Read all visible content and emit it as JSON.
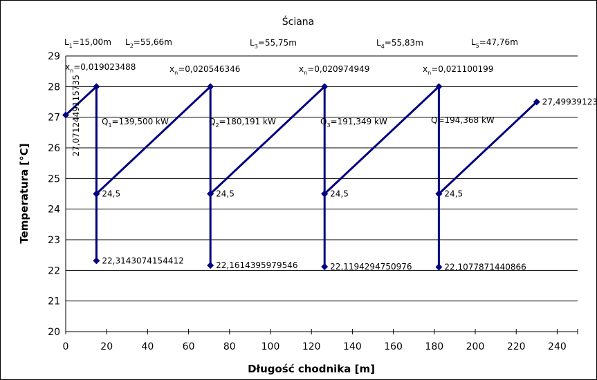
{
  "chart_data": {
    "type": "line",
    "title": "Ściana",
    "xlabel": "Długość chodnika [m]",
    "ylabel": "Temperatura [°C]",
    "xlim": [
      0,
      250
    ],
    "ylim": [
      20,
      29
    ],
    "xticks": [
      0,
      20,
      40,
      60,
      80,
      100,
      120,
      140,
      160,
      180,
      200,
      220,
      240
    ],
    "yticks": [
      20,
      21,
      22,
      23,
      24,
      25,
      26,
      27,
      28,
      29
    ],
    "grid": "horizontal",
    "color": "#000080",
    "series": [
      {
        "points": [
          [
            0,
            27.0712449115735
          ],
          [
            15.0,
            28.0
          ],
          [
            15.0,
            24.5
          ],
          [
            15.0,
            22.3143074154412
          ],
          [
            15.0,
            24.5
          ],
          [
            70.66,
            28.0
          ],
          [
            70.66,
            24.5
          ],
          [
            70.66,
            22.1614395979546
          ],
          [
            70.66,
            24.5
          ],
          [
            126.41,
            28.0
          ],
          [
            126.41,
            24.5
          ],
          [
            126.41,
            22.1194294750976
          ],
          [
            126.41,
            24.5
          ],
          [
            182.24,
            28.0
          ],
          [
            182.24,
            24.5
          ],
          [
            182.24,
            22.1077871440866
          ],
          [
            182.24,
            24.5
          ],
          [
            230.0,
            27.49939123
          ]
        ]
      }
    ],
    "segments": [
      {
        "L": "L",
        "L_sub": "1",
        "L_value": "=15,00m",
        "x_label": "x",
        "x_sub": "n",
        "x_value": "=0,019023488",
        "Q": "Q",
        "Q_sub": "1",
        "Q_value": "=139,500 kW"
      },
      {
        "L": "L",
        "L_sub": "2",
        "L_value": "=55,66m",
        "x_label": "x",
        "x_sub": "n",
        "x_value": "=0,020546346",
        "Q": "Q",
        "Q_sub": "2",
        "Q_value": "=180,191 kW"
      },
      {
        "L": "L",
        "L_sub": "3",
        "L_value": "=55,75m",
        "x_label": "x",
        "x_sub": "n",
        "x_value": "=0,020974949",
        "Q": "Q",
        "Q_sub": "3",
        "Q_value": "=191,349 kW"
      },
      {
        "L": "L",
        "L_sub": "4",
        "L_value": "=55,83m",
        "x_label": "x",
        "x_sub": "n",
        "x_value": "=0,021100199",
        "Q": "Q",
        "Q_sub": "",
        "Q_value": "=194,368 kW"
      },
      {
        "L": "L",
        "L_sub": "5",
        "L_value": "=47,76m"
      }
    ],
    "data_labels": [
      {
        "text": "27,0712449115735",
        "x": 0,
        "y": 27.0712449115735
      },
      {
        "text": "24,5",
        "x": 15.0,
        "y": 24.5
      },
      {
        "text": "22,3143074154412",
        "x": 15.0,
        "y": 22.3143074154412
      },
      {
        "text": "24,5",
        "x": 70.66,
        "y": 24.5
      },
      {
        "text": "22,1614395979546",
        "x": 70.66,
        "y": 22.1614395979546
      },
      {
        "text": "24,5",
        "x": 126.41,
        "y": 24.5
      },
      {
        "text": "22,1194294750976",
        "x": 126.41,
        "y": 22.1194294750976
      },
      {
        "text": "24,5",
        "x": 182.24,
        "y": 24.5
      },
      {
        "text": "22,1077871440866",
        "x": 182.24,
        "y": 22.1077871440866
      },
      {
        "text": "27,49939123",
        "x": 230.0,
        "y": 27.49939123
      }
    ]
  }
}
